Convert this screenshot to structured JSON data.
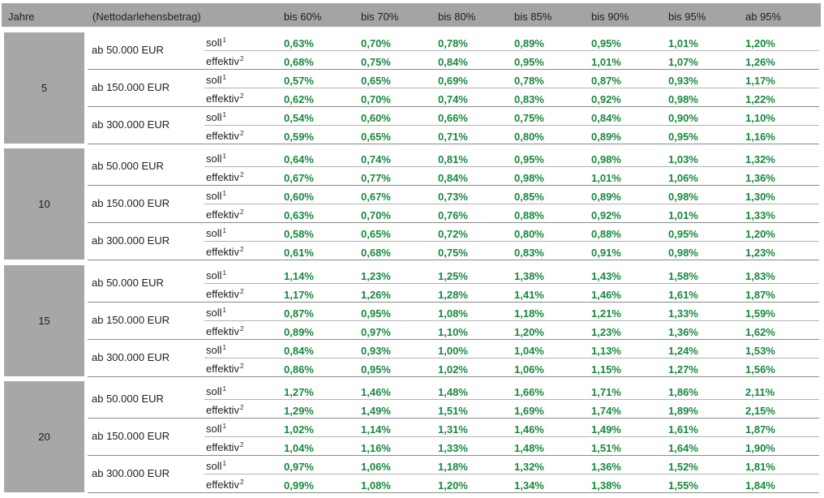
{
  "header": {
    "jahre": "Jahre",
    "betrag": "(Nettodarlehensbetrag)",
    "ltv": [
      "bis 60%",
      "bis 70%",
      "bis 80%",
      "bis 85%",
      "bis 90%",
      "bis 95%",
      "ab 95%"
    ]
  },
  "rate_types": {
    "soll": "soll",
    "soll_sup": "1",
    "effektiv": "effektiv",
    "effektiv_sup": "2"
  },
  "blocks": [
    {
      "years": "5",
      "tiers": [
        {
          "amount": "ab 50.000 EUR",
          "soll": [
            "0,63%",
            "0,70%",
            "0,78%",
            "0,89%",
            "0,95%",
            "1,01%",
            "1,20%"
          ],
          "effektiv": [
            "0,68%",
            "0,75%",
            "0,84%",
            "0,95%",
            "1,01%",
            "1,07%",
            "1,26%"
          ]
        },
        {
          "amount": "ab 150.000 EUR",
          "soll": [
            "0,57%",
            "0,65%",
            "0,69%",
            "0,78%",
            "0,87%",
            "0,93%",
            "1,17%"
          ],
          "effektiv": [
            "0,62%",
            "0,70%",
            "0,74%",
            "0,83%",
            "0,92%",
            "0,98%",
            "1,22%"
          ]
        },
        {
          "amount": "ab 300.000 EUR",
          "soll": [
            "0,54%",
            "0,60%",
            "0,66%",
            "0,75%",
            "0,84%",
            "0,90%",
            "1,10%"
          ],
          "effektiv": [
            "0,59%",
            "0,65%",
            "0,71%",
            "0,80%",
            "0,89%",
            "0,95%",
            "1,16%"
          ]
        }
      ]
    },
    {
      "years": "10",
      "tiers": [
        {
          "amount": "ab 50.000 EUR",
          "soll": [
            "0,64%",
            "0,74%",
            "0,81%",
            "0,95%",
            "0,98%",
            "1,03%",
            "1,32%"
          ],
          "effektiv": [
            "0,67%",
            "0,77%",
            "0,84%",
            "0,98%",
            "1,01%",
            "1,06%",
            "1,36%"
          ]
        },
        {
          "amount": "ab 150.000 EUR",
          "soll": [
            "0,60%",
            "0,67%",
            "0,73%",
            "0,85%",
            "0,89%",
            "0,98%",
            "1,30%"
          ],
          "effektiv": [
            "0,63%",
            "0,70%",
            "0,76%",
            "0,88%",
            "0,92%",
            "1,01%",
            "1,33%"
          ]
        },
        {
          "amount": "ab 300.000 EUR",
          "soll": [
            "0,58%",
            "0,65%",
            "0,72%",
            "0,80%",
            "0,88%",
            "0,95%",
            "1,20%"
          ],
          "effektiv": [
            "0,61%",
            "0,68%",
            "0,75%",
            "0,83%",
            "0,91%",
            "0,98%",
            "1,23%"
          ]
        }
      ]
    },
    {
      "years": "15",
      "tiers": [
        {
          "amount": "ab 50.000 EUR",
          "soll": [
            "1,14%",
            "1,23%",
            "1,25%",
            "1,38%",
            "1,43%",
            "1,58%",
            "1,83%"
          ],
          "effektiv": [
            "1,17%",
            "1,26%",
            "1,28%",
            "1,41%",
            "1,46%",
            "1,61%",
            "1,87%"
          ]
        },
        {
          "amount": "ab 150.000 EUR",
          "soll": [
            "0,87%",
            "0,95%",
            "1,08%",
            "1,18%",
            "1,21%",
            "1,33%",
            "1,59%"
          ],
          "effektiv": [
            "0,89%",
            "0,97%",
            "1,10%",
            "1,20%",
            "1,23%",
            "1,36%",
            "1,62%"
          ]
        },
        {
          "amount": "ab 300.000 EUR",
          "soll": [
            "0,84%",
            "0,93%",
            "1,00%",
            "1,04%",
            "1,13%",
            "1,24%",
            "1,53%"
          ],
          "effektiv": [
            "0,86%",
            "0,95%",
            "1,02%",
            "1,06%",
            "1,15%",
            "1,27%",
            "1,56%"
          ]
        }
      ]
    },
    {
      "years": "20",
      "tiers": [
        {
          "amount": "ab 50.000 EUR",
          "soll": [
            "1,27%",
            "1,46%",
            "1,48%",
            "1,66%",
            "1,71%",
            "1,86%",
            "2,11%"
          ],
          "effektiv": [
            "1,29%",
            "1,49%",
            "1,51%",
            "1,69%",
            "1,74%",
            "1,89%",
            "2,15%"
          ]
        },
        {
          "amount": "ab 150.000 EUR",
          "soll": [
            "1,02%",
            "1,14%",
            "1,31%",
            "1,46%",
            "1,49%",
            "1,61%",
            "1,87%"
          ],
          "effektiv": [
            "1,04%",
            "1,16%",
            "1,33%",
            "1,48%",
            "1,51%",
            "1,64%",
            "1,90%"
          ]
        },
        {
          "amount": "ab 300.000 EUR",
          "soll": [
            "0,97%",
            "1,06%",
            "1,18%",
            "1,32%",
            "1,36%",
            "1,52%",
            "1,81%"
          ],
          "effektiv": [
            "0,99%",
            "1,08%",
            "1,20%",
            "1,34%",
            "1,38%",
            "1,55%",
            "1,84%"
          ]
        }
      ]
    }
  ]
}
